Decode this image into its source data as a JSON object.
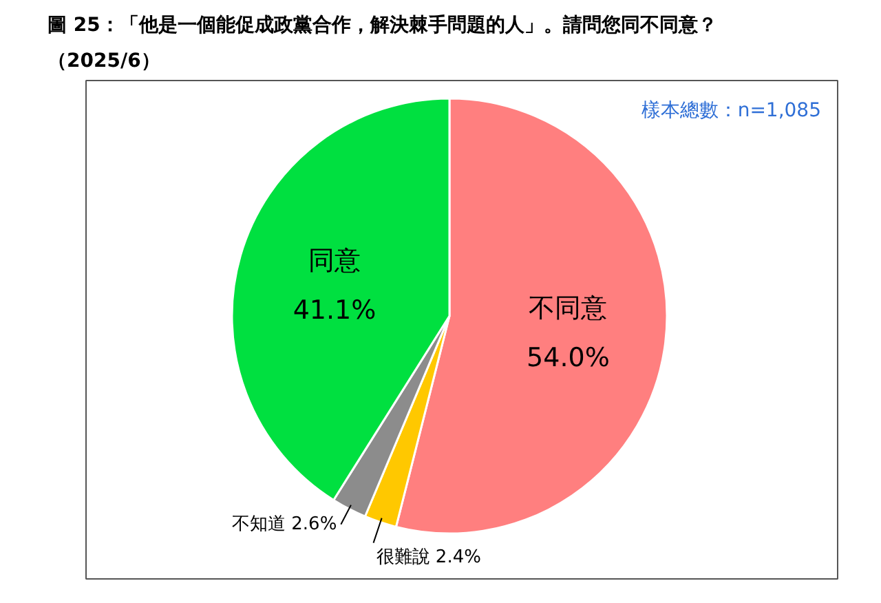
{
  "chart_data": {
    "type": "pie",
    "title": "圖 25：「他是一個能促成政黨合作，解決棘手問題的人」。請問您同不同意？",
    "subtitle": "（2025/6）",
    "annotations": [
      "樣本總數：n=1,085"
    ],
    "categories": [
      "不同意",
      "很難說",
      "不知道",
      "同意"
    ],
    "values": [
      54.0,
      2.4,
      2.6,
      41.1
    ],
    "value_labels": [
      "54.0%",
      "2.4%",
      "2.6%",
      "41.1%"
    ],
    "colors": [
      "#ff7f7f",
      "#ffc800",
      "#8c8c8c",
      "#00e040"
    ],
    "legend": false
  }
}
